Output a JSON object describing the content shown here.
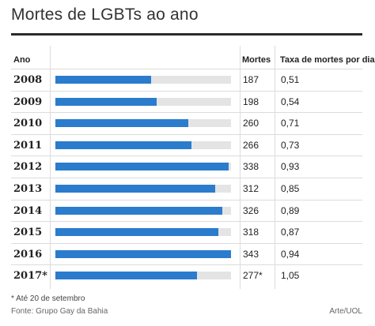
{
  "title": "Mortes de LGBTs ao ano",
  "footer": {
    "note": "* Até 20 de setembro",
    "source": "Fonte: Grupo Gay da Bahia",
    "credit": "Arte/UOL"
  },
  "colors": {
    "bar": "#2b7ccc",
    "track": "#e4e4e4",
    "rule": "#2a2a2a"
  },
  "chart_data": {
    "type": "table",
    "columns": [
      "Ano",
      "",
      "Mortes",
      "Taxa de mortes por dia"
    ],
    "max_value": 343,
    "rows": [
      {
        "year": "2008",
        "deaths": 187,
        "deaths_label": "187",
        "rate": "0,51"
      },
      {
        "year": "2009",
        "deaths": 198,
        "deaths_label": "198",
        "rate": "0,54"
      },
      {
        "year": "2010",
        "deaths": 260,
        "deaths_label": "260",
        "rate": "0,71"
      },
      {
        "year": "2011",
        "deaths": 266,
        "deaths_label": "266",
        "rate": "0,73"
      },
      {
        "year": "2012",
        "deaths": 338,
        "deaths_label": "338",
        "rate": "0,93"
      },
      {
        "year": "2013",
        "deaths": 312,
        "deaths_label": "312",
        "rate": "0,85"
      },
      {
        "year": "2014",
        "deaths": 326,
        "deaths_label": "326",
        "rate": "0,89"
      },
      {
        "year": "2015",
        "deaths": 318,
        "deaths_label": "318",
        "rate": "0,87"
      },
      {
        "year": "2016",
        "deaths": 343,
        "deaths_label": "343",
        "rate": "0,94"
      },
      {
        "year": "2017*",
        "deaths": 277,
        "deaths_label": "277*",
        "rate": "1,05"
      }
    ]
  }
}
